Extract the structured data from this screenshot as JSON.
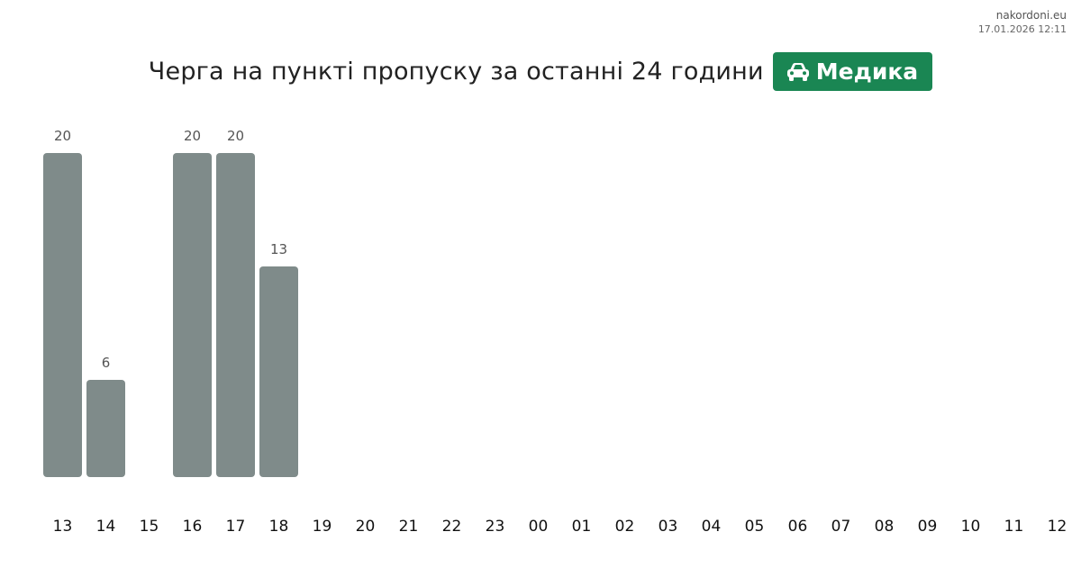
{
  "source": {
    "site": "nakordoni.eu",
    "timestamp": "17.01.2026 12:11"
  },
  "header": {
    "title": "Черга на пункті пропуску за останні 24 години",
    "badge_label": "Медика",
    "badge_icon": "car-icon",
    "badge_color": "#1a8653"
  },
  "chart_data": {
    "type": "bar",
    "title": "Черга на пункті пропуску за останні 24 години",
    "xlabel": "",
    "ylabel": "",
    "categories": [
      "13",
      "14",
      "15",
      "16",
      "17",
      "18",
      "19",
      "20",
      "21",
      "22",
      "23",
      "00",
      "01",
      "02",
      "03",
      "04",
      "05",
      "06",
      "07",
      "08",
      "09",
      "10",
      "11",
      "12"
    ],
    "values": [
      20,
      6,
      null,
      20,
      20,
      13,
      null,
      null,
      null,
      null,
      null,
      null,
      null,
      null,
      null,
      null,
      null,
      null,
      null,
      null,
      null,
      null,
      null,
      null
    ],
    "ylim": [
      0,
      20
    ],
    "bar_color": "#7f8b8a",
    "grid": false,
    "legend": "none",
    "data_labels": true
  }
}
